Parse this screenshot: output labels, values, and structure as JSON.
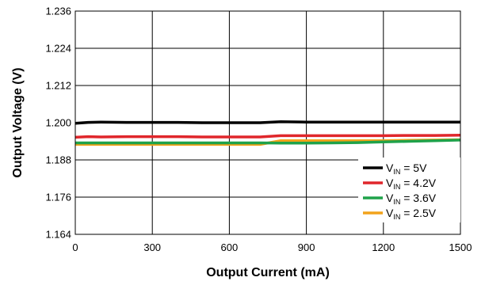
{
  "chart_data": {
    "type": "line",
    "xlabel": "Output Current (mA)",
    "ylabel": "Output Voltage (V)",
    "xlim": [
      0,
      1500
    ],
    "ylim": [
      1.164,
      1.236
    ],
    "xticks": [
      "0",
      "300",
      "600",
      "900",
      "1200",
      "1500"
    ],
    "yticks": [
      "1.236",
      "1.224",
      "1.212",
      "1.200",
      "1.188",
      "1.176",
      "1.164"
    ],
    "grid": true,
    "legend_position": "bottom-right",
    "series": [
      {
        "name_main": "V",
        "name_sub": "IN",
        "name_rest": " = 5V",
        "color": "#000000",
        "x": [
          0,
          50,
          100,
          200,
          300,
          400,
          500,
          600,
          700,
          720,
          800,
          900,
          1000,
          1100,
          1200,
          1300,
          1400,
          1500
        ],
        "y": [
          1.1998,
          1.2001,
          1.2002,
          1.2001,
          1.2001,
          1.2001,
          1.2,
          1.2,
          1.2,
          1.2,
          1.2003,
          1.2002,
          1.2002,
          1.2002,
          1.2002,
          1.2002,
          1.2002,
          1.2002
        ]
      },
      {
        "name_main": "V",
        "name_sub": "IN",
        "name_rest": " = 4.2V",
        "color": "#e0262b",
        "x": [
          0,
          50,
          100,
          200,
          300,
          400,
          500,
          600,
          700,
          720,
          800,
          900,
          1000,
          1100,
          1200,
          1300,
          1400,
          1500
        ],
        "y": [
          1.1953,
          1.1955,
          1.1954,
          1.1955,
          1.1955,
          1.1955,
          1.1954,
          1.1954,
          1.1954,
          1.1954,
          1.1958,
          1.1958,
          1.1958,
          1.1958,
          1.1958,
          1.1959,
          1.1959,
          1.196
        ]
      },
      {
        "name_main": "V",
        "name_sub": "IN",
        "name_rest": " = 3.6V",
        "color": "#1fa24a",
        "x": [
          0,
          100,
          200,
          300,
          400,
          500,
          600,
          700,
          720,
          800,
          900,
          1000,
          1100,
          1200,
          1300,
          1400,
          1500
        ],
        "y": [
          1.1935,
          1.1935,
          1.1935,
          1.1935,
          1.1935,
          1.1935,
          1.1935,
          1.1935,
          1.1935,
          1.1934,
          1.1934,
          1.1935,
          1.1936,
          1.1938,
          1.194,
          1.1942,
          1.1944
        ]
      },
      {
        "name_main": "V",
        "name_sub": "IN",
        "name_rest": " = 2.5V",
        "color": "#f2a31b",
        "x": [
          0,
          100,
          200,
          300,
          400,
          500,
          600,
          700,
          720,
          800,
          900,
          1000,
          1100,
          1200,
          1300,
          1400,
          1500
        ],
        "y": [
          1.193,
          1.193,
          1.193,
          1.193,
          1.193,
          1.193,
          1.193,
          1.193,
          1.193,
          1.1942,
          1.1942,
          1.1942,
          1.1942,
          1.1942,
          1.1943,
          1.1944,
          1.1945
        ]
      }
    ]
  }
}
